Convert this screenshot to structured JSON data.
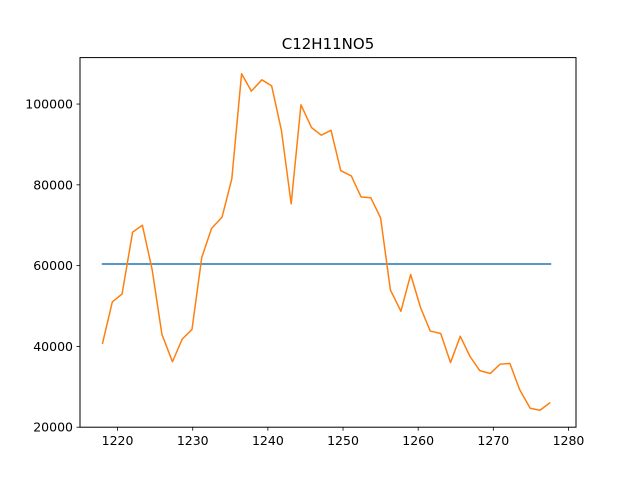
{
  "chart_data": {
    "type": "line",
    "title": "C12H11NO5",
    "xlabel": "",
    "ylabel": "",
    "xlim": [
      1215,
      1281
    ],
    "ylim": [
      20000,
      111500
    ],
    "x_ticks": [
      1220,
      1230,
      1240,
      1250,
      1260,
      1270,
      1280
    ],
    "y_ticks": [
      20000,
      40000,
      60000,
      80000,
      100000
    ],
    "grid": false,
    "legend": "none",
    "series": [
      {
        "color": "#1f77b4",
        "x": [
          1218.0,
          1277.6
        ],
        "y": [
          60400,
          60400
        ]
      },
      {
        "color": "#ff7f0e",
        "x": [
          1218.0,
          1219.3,
          1220.6,
          1222.0,
          1223.3,
          1224.6,
          1225.9,
          1227.3,
          1228.6,
          1229.9,
          1231.2,
          1232.5,
          1233.9,
          1235.2,
          1236.5,
          1237.8,
          1239.2,
          1240.5,
          1241.8,
          1243.1,
          1244.4,
          1245.8,
          1247.1,
          1248.4,
          1249.7,
          1251.1,
          1252.4,
          1253.7,
          1255.0,
          1256.3,
          1257.7,
          1259.0,
          1260.3,
          1261.6,
          1263.0,
          1264.3,
          1265.6,
          1266.9,
          1268.2,
          1269.6,
          1270.9,
          1272.2,
          1273.5,
          1274.9,
          1276.2,
          1277.5
        ],
        "y": [
          40800,
          51000,
          53000,
          68300,
          70000,
          59000,
          43000,
          36200,
          41800,
          44200,
          62000,
          69200,
          72000,
          81500,
          107500,
          103200,
          106000,
          104500,
          93500,
          75300,
          99800,
          94200,
          92300,
          93500,
          83500,
          82200,
          77000,
          76800,
          71800,
          54000,
          48700,
          57800,
          49700,
          43800,
          43200,
          36000,
          42500,
          37500,
          34000,
          33300,
          35600,
          35800,
          29300,
          24700,
          24200,
          26000
        ]
      }
    ]
  }
}
